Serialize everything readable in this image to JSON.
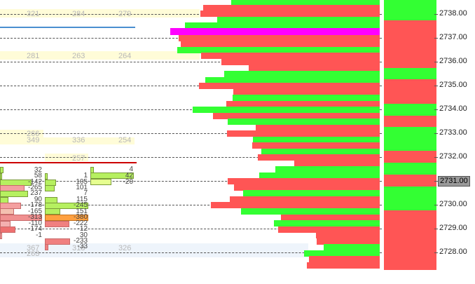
{
  "colors": {
    "buy": "#33ff33",
    "sell": "#ff5555",
    "highlight": "#ff00ff",
    "row_highlight": "#fffcd8",
    "blue_line": "#4a8fd0",
    "red_line": "#cc0000"
  },
  "price_axis": {
    "labels": [
      "2738.00",
      "2737.00",
      "2736.00",
      "2735.00",
      "2734.00",
      "2733.00",
      "2732.00",
      "2731.00",
      "2730.00",
      "2729.00",
      "2728.00"
    ],
    "current_price": "2731.00"
  },
  "profile_values": {
    "row1": [
      "321",
      "284",
      "279"
    ],
    "row2": [
      "281",
      "263",
      "264"
    ],
    "row3": [
      "266"
    ],
    "row4": [
      "349",
      "336",
      "254"
    ],
    "row5": [
      "257"
    ],
    "row6": [
      "367",
      "318",
      "326"
    ],
    "row7": [
      "263"
    ]
  },
  "footprint": {
    "left_values": [
      "32",
      "58",
      "-142",
      "-265",
      "237",
      "90",
      "-178",
      "-165",
      "-313",
      "-110",
      "-174",
      "-1"
    ],
    "mid_values": [
      "1",
      "105",
      "101",
      "7",
      "115",
      "-245",
      "151",
      "-380",
      "-222",
      "-12",
      "30",
      "-233",
      "-33"
    ],
    "right_values": [
      "4",
      "42",
      "-20"
    ]
  }
}
